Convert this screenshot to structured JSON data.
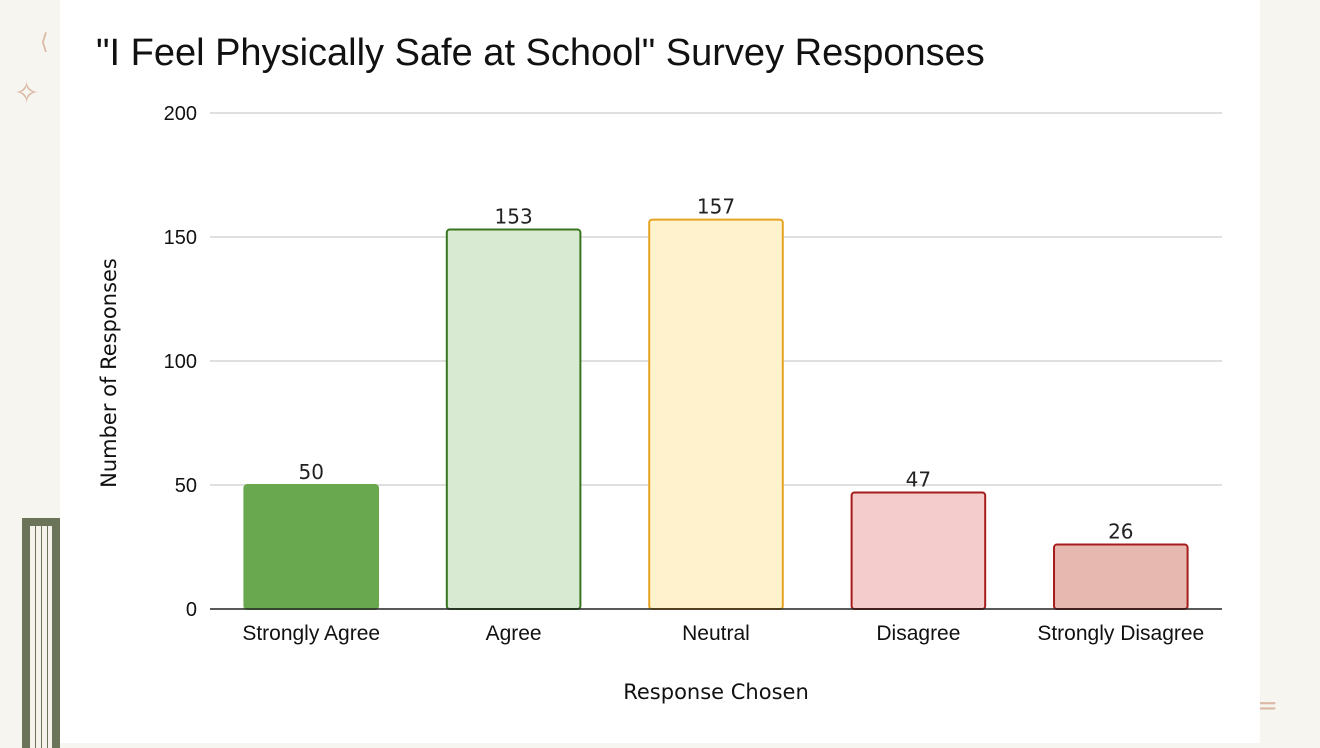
{
  "chart_data": {
    "type": "bar",
    "title": "\"I Feel Physically Safe at School\" Survey Responses",
    "xlabel": "Response Chosen",
    "ylabel": "Number of Responses",
    "categories": [
      "Strongly Agree",
      "Agree",
      "Neutral",
      "Disagree",
      "Strongly Disagree"
    ],
    "values": [
      50,
      153,
      157,
      47,
      26
    ],
    "ylim": [
      0,
      200
    ],
    "yticks": [
      "0",
      "50",
      "100",
      "150",
      "200"
    ],
    "grid": true,
    "bar_fills": [
      "#6aa84f",
      "#d9ead3",
      "#fff2cc",
      "#f4cccc",
      "#e6b8af"
    ],
    "bar_strokes": [
      "#6aa84f",
      "#38761d",
      "#e6a323",
      "#a61c1c",
      "#a61c1c"
    ]
  },
  "decorations": {
    "sparkle": "✧"
  }
}
